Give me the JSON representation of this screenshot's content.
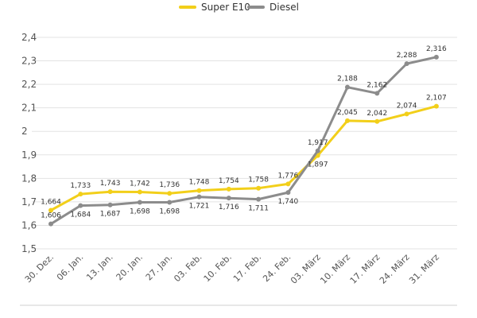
{
  "chart_data": {
    "type": "line",
    "title": "",
    "xlabel": "",
    "ylabel": "",
    "categories": [
      "30. Dez.",
      "06. Jan.",
      "13. Jan.",
      "20. Jan.",
      "27. Jan.",
      "03. Feb.",
      "10. Feb.",
      "17. Feb.",
      "24. Feb.",
      "03. März",
      "10. März",
      "17. März",
      "24. März",
      "31. März"
    ],
    "ylim": [
      1.5,
      2.4
    ],
    "yticks": [
      "1,5",
      "1,6",
      "1,7",
      "1,8",
      "1,9",
      "2",
      "2,1",
      "2,2",
      "2,3",
      "2,4"
    ],
    "grid": true,
    "legend_position": "top-center",
    "series": [
      {
        "name": "Super E10",
        "color": "#f2cf1a",
        "values": [
          1.664,
          1.733,
          1.743,
          1.742,
          1.736,
          1.748,
          1.754,
          1.758,
          1.776,
          1.897,
          2.045,
          2.042,
          2.074,
          2.107
        ],
        "labels": [
          "1,664",
          "1,733",
          "1,743",
          "1,742",
          "1,736",
          "1,748",
          "1,754",
          "1,758",
          "1,776",
          "1,897",
          "2,045",
          "2,042",
          "2,074",
          "2,107"
        ]
      },
      {
        "name": "Diesel",
        "color": "#8c8c8c",
        "values": [
          1.606,
          1.684,
          1.687,
          1.698,
          1.698,
          1.721,
          1.716,
          1.711,
          1.74,
          1.917,
          2.188,
          2.162,
          2.288,
          2.316
        ],
        "labels": [
          "1,606",
          "1,684",
          "1,687",
          "1,698",
          "1,698",
          "1,721",
          "1,716",
          "1,711",
          "1,740",
          "1,917",
          "2,188",
          "2,162",
          "2,288",
          "2,316"
        ]
      }
    ]
  }
}
